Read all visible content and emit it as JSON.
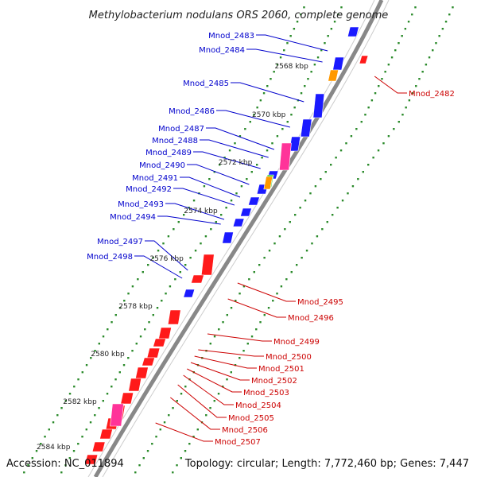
{
  "title": "Methylobacterium nodulans ORS 2060, complete genome",
  "accession": "Accession: NC_011894",
  "summary": "Topology: circular; Length: 7,772,460 bp; Genes: 7,447",
  "colors": {
    "forward_label": "#0000cc",
    "reverse_label": "#cc0000",
    "forward_gene": "#1a1aff",
    "reverse_gene": "#ff1a1a",
    "pink_gene": "#ff3399",
    "orange_gene": "#ff9900",
    "green_gene": "#33cc33",
    "tick_green": "#2a8a2a",
    "backbone": "#888888"
  },
  "kbp_marks": [
    "2568 kbp",
    "2570 kbp",
    "2572 kbp",
    "2574 kbp",
    "2576 kbp",
    "2578 kbp",
    "2580 kbp",
    "2582 kbp",
    "2584 kbp"
  ],
  "forward_labels": [
    "Mnod_2483",
    "Mnod_2484",
    "Mnod_2485",
    "Mnod_2486",
    "Mnod_2487",
    "Mnod_2488",
    "Mnod_2489",
    "Mnod_2490",
    "Mnod_2491",
    "Mnod_2492",
    "Mnod_2493",
    "Mnod_2494",
    "Mnod_2497",
    "Mnod_2498"
  ],
  "reverse_labels": [
    "Mnod_2482",
    "Mnod_2495",
    "Mnod_2496",
    "Mnod_2499",
    "Mnod_2500",
    "Mnod_2501",
    "Mnod_2502",
    "Mnod_2503",
    "Mnod_2504",
    "Mnod_2505",
    "Mnod_2506",
    "Mnod_2507"
  ]
}
